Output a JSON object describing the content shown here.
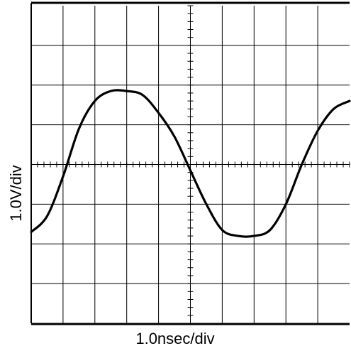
{
  "chart_data": {
    "type": "line",
    "xlabel": "1.0nsec/div",
    "ylabel": "1.0V/div",
    "divisions": {
      "x": 10,
      "y": 8
    },
    "grid": true,
    "x_unit": "div",
    "y_unit": "div",
    "xlim": [
      0,
      10
    ],
    "ylim": [
      -4,
      4
    ],
    "series": [
      {
        "x": [
          0,
          0.5,
          1.0,
          1.5,
          2.0,
          2.5,
          3.0,
          3.5,
          4.0,
          4.5,
          5.0,
          5.5,
          6.0,
          6.5,
          7.0,
          7.5,
          8.0,
          8.5,
          9.0,
          9.5,
          10.0
        ],
        "y": [
          -1.7,
          -1.3,
          -0.3,
          0.9,
          1.6,
          1.85,
          1.85,
          1.75,
          1.3,
          0.7,
          -0.15,
          -1.0,
          -1.65,
          -1.8,
          -1.8,
          -1.65,
          -1.0,
          0.0,
          0.85,
          1.4,
          1.6
        ]
      }
    ]
  }
}
